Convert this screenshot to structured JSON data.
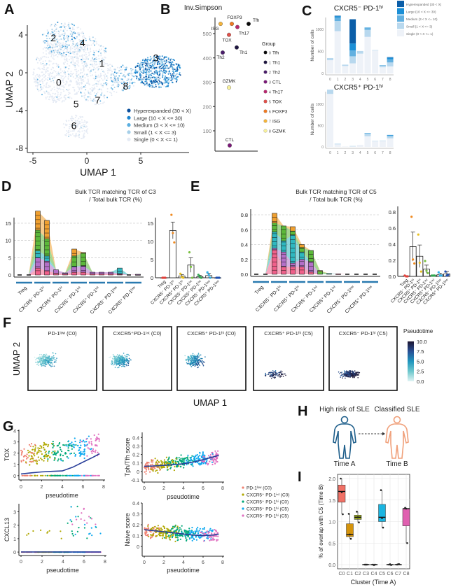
{
  "panels": {
    "A": "A",
    "B": "B",
    "C": "C",
    "D": "D",
    "E": "E",
    "F": "F",
    "G": "G",
    "H": "H",
    "I": "I"
  },
  "chart_data": [
    {
      "id": "A",
      "type": "scatter",
      "xlabel": "UMAP 1",
      "ylabel": "UMAP 2",
      "xticks": [
        -5,
        0,
        5
      ],
      "yticks": [
        4,
        0,
        -4,
        -8
      ],
      "xlim": [
        -5.5,
        9.5
      ],
      "ylim": [
        -8,
        6.5
      ],
      "cluster_labels": [
        {
          "label": "0",
          "x": -2.6,
          "y": -1
        },
        {
          "label": "1",
          "x": 1.4,
          "y": 1
        },
        {
          "label": "2",
          "x": -3.1,
          "y": 3.7
        },
        {
          "label": "3",
          "x": 6.4,
          "y": 1.6
        },
        {
          "label": "4",
          "x": -0.4,
          "y": 3.2
        },
        {
          "label": "5",
          "x": -1,
          "y": -3.3
        },
        {
          "label": "6",
          "x": -1.2,
          "y": -5.6
        },
        {
          "label": "7",
          "x": 1,
          "y": -2.9
        },
        {
          "label": "8",
          "x": 3.6,
          "y": -1.4
        }
      ],
      "legend": [
        {
          "label": "Hyperexpanded (30 < X)",
          "color": "#0b4f9c"
        },
        {
          "label": "Large (10 < X <= 30)",
          "color": "#1f86cf"
        },
        {
          "label": "Medium (3 < X <= 10)",
          "color": "#5aaee0"
        },
        {
          "label": "Small (1 < X <= 3)",
          "color": "#a6cfe8"
        },
        {
          "label": "Single (0 < X <= 1)",
          "color": "#e4eaf4"
        }
      ]
    },
    {
      "id": "B",
      "type": "scatter",
      "title": "Inv.Simpson",
      "yticks": [
        100,
        200,
        300,
        400,
        500
      ],
      "ylim": [
        20,
        560
      ],
      "legend_title": "Group",
      "groups": [
        {
          "idx": "0",
          "name": "Tfh",
          "value": 540,
          "color": "#0a0a0a"
        },
        {
          "idx": "1",
          "name": "Th1",
          "value": 443,
          "color": "#1e1640"
        },
        {
          "idx": "2",
          "name": "Th2",
          "value": 422,
          "color": "#4a1d6a"
        },
        {
          "idx": "3",
          "name": "CTL",
          "value": 40,
          "color": "#7b1a78"
        },
        {
          "idx": "4",
          "name": "Th17",
          "value": 527,
          "color": "#b8286e"
        },
        {
          "idx": "5",
          "name": "TOX",
          "value": 495,
          "color": "#e0504a"
        },
        {
          "idx": "6",
          "name": "FOXP3",
          "value": 540,
          "color": "#f07a22"
        },
        {
          "idx": "7",
          "name": "ISG",
          "value": 540,
          "color": "#f5b43a"
        },
        {
          "idx": "8",
          "name": "GZMK",
          "value": 278,
          "color": "#f7f09a"
        }
      ]
    },
    {
      "id": "C",
      "type": "bar",
      "stacked": true,
      "ylabel": "Number of cells",
      "categories": [
        "0",
        "1",
        "2",
        "3",
        "4",
        "5",
        "6",
        "7",
        "8"
      ],
      "layers": [
        "Single (0 < X <= 1)",
        "Small (1 < X <= 3)",
        "Medium (3 < X <= 10)",
        "Large (10 < X <= 30)",
        "Hyperexpanded (30 < X)"
      ],
      "legend": [
        {
          "label": "Hyperexpanded (30 < X)",
          "color": "#0b5ea8"
        },
        {
          "label": "Large (10 < X <= 30)",
          "color": "#1b8fd6"
        },
        {
          "label": "Medium (3 < X <= 10)",
          "color": "#62b0e0"
        },
        {
          "label": "Small (1 < X <= 3)",
          "color": "#b8d8ee"
        },
        {
          "label": "Single (0 < X <= 1)",
          "color": "#eef2f8"
        }
      ],
      "subplots": [
        {
          "title": "CXCR5⁻ PD-1ʰⁱ",
          "yticks": [
            0,
            500,
            1000
          ],
          "ylim": [
            0,
            1350
          ],
          "values": [
            [
              300,
              50,
              0,
              0,
              0
            ],
            [
              960,
              230,
              80,
              30,
              10
            ],
            [
              170,
              30,
              0,
              0,
              0
            ],
            [
              230,
              160,
              130,
              160,
              550
            ],
            [
              450,
              60,
              0,
              0,
              0
            ],
            [
              830,
              160,
              40,
              10,
              0
            ],
            [
              520,
              10,
              0,
              0,
              0
            ],
            [
              140,
              40,
              10,
              0,
              0
            ],
            [
              160,
              90,
              70,
              40,
              10
            ]
          ]
        },
        {
          "title": "CXCR5⁺ PD-1ʰⁱ",
          "yticks": [
            0,
            500,
            1000
          ],
          "ylim": [
            0,
            1350
          ],
          "values": [
            [
              1240,
              100,
              0,
              0,
              0
            ],
            [
              60,
              15,
              0,
              0,
              0
            ],
            [
              10,
              0,
              0,
              0,
              0
            ],
            [
              12,
              10,
              0,
              0,
              0
            ],
            [
              50,
              0,
              0,
              0,
              0
            ],
            [
              250,
              60,
              15,
              0,
              0
            ],
            [
              130,
              10,
              0,
              0,
              0
            ],
            [
              140,
              10,
              0,
              0,
              0
            ],
            [
              200,
              50,
              20,
              10,
              0
            ]
          ]
        }
      ]
    },
    {
      "id": "D",
      "type": "area",
      "title": [
        "Bulk TCR matching TCR of C3",
        "/ Total bulk TCR (%)"
      ],
      "categories": [
        "Treg",
        "CXCR5⁻ PD-1ʰⁱ",
        "CXCR5⁺ PD-1ʰⁱ",
        "CXCR5⁻ PD-1ⁱⁿᵗ",
        "CXCR5⁺ PD-1ⁱⁿᵗ",
        "CXCR5⁻ PD-1ˡᵒʷ",
        "CXCR5⁺ PD-1ˡᵒʷ"
      ],
      "yticks": [
        0,
        5,
        10,
        15
      ],
      "ylim": [
        0,
        20
      ],
      "layer_colors": [
        "#f0608a",
        "#b36fc8",
        "#2fb8c0",
        "#5cb83a",
        "#f0a030"
      ],
      "columns": [
        [
          0,
          0,
          0,
          0,
          0
        ],
        [
          0,
          0,
          0,
          0,
          0
        ],
        [
          2,
          3,
          2,
          6,
          5.5
        ],
        [
          1.2,
          2.8,
          1.5,
          5,
          5.3
        ],
        [
          0.5,
          1,
          0,
          0,
          0
        ],
        [
          0.3,
          0.3,
          0,
          0,
          0
        ],
        [
          0.8,
          1.5,
          0.2,
          3,
          2
        ],
        [
          0.8,
          1.7,
          0.2,
          3.6,
          0.2
        ],
        [
          0.3,
          0.5,
          0,
          0,
          0
        ],
        [
          0.3,
          0.5,
          0,
          0,
          0
        ],
        [
          0.3,
          0.5,
          0,
          0,
          0
        ],
        [
          0.2,
          0.2,
          1.6,
          0,
          0
        ],
        [
          0,
          0,
          0,
          0,
          0
        ],
        [
          0.1,
          0.1,
          0,
          0,
          0
        ]
      ],
      "bar_summary": {
        "categories": [
          "Treg",
          "CXCR5⁻ PD-1ʰⁱ",
          "CXCR5⁺ PD-1ʰⁱ",
          "CXCR5⁻ PD-1ⁱⁿᵗ",
          "CXCR5⁺ PD-1ⁱⁿᵗ",
          "CXCR5⁻ PD-1ˡᵒʷ",
          "CXCR5⁺ PD-1ˡᵒʷ"
        ],
        "yticks": [
          0,
          5,
          10,
          15
        ],
        "ylim": [
          0,
          18
        ],
        "means": [
          0,
          13,
          0.5,
          3.5,
          0.3,
          0.6,
          0
        ],
        "sem": [
          0,
          2.3,
          0.4,
          2,
          0.4,
          0.6,
          0
        ],
        "points": [
          [
            0,
            0,
            0
          ],
          [
            17.3,
            12.3,
            9.7
          ],
          [
            1.1,
            0.2,
            0
          ],
          [
            7,
            3,
            0
          ],
          [
            0.8,
            0.3,
            0
          ],
          [
            1.5,
            0.8,
            0
          ],
          [
            0,
            0,
            0
          ]
        ],
        "point_colors": [
          "#e0403a",
          "#f08a20",
          "#e8c020",
          "#7ac040",
          "#30a850",
          "#30b0e8",
          "#2050b0"
        ]
      }
    },
    {
      "id": "E",
      "type": "area",
      "title": [
        "Bulk TCR matching TCR of C5",
        "/ Total bulk TCR (%)"
      ],
      "categories": [
        "Treg",
        "CXCR5⁻ PD-1ʰⁱ",
        "CXCR5⁺ PD-1ʰⁱ",
        "CXCR5⁻ PD-1ⁱⁿᵗ",
        "CXCR5⁺ PD-1ⁱⁿᵗ",
        "CXCR5⁻ PD-1ˡᵒʷ",
        "CXCR5⁺ PD-1ˡᵒʷ"
      ],
      "yticks": [
        0.0,
        0.2,
        0.4,
        0.6,
        0.8
      ],
      "ylim": [
        0,
        0.85
      ],
      "layer_colors": [
        "#f0608a",
        "#b36fc8",
        "#2fb8c0",
        "#5cb83a",
        "#f0a030"
      ],
      "columns": [
        [
          0,
          0,
          0,
          0,
          0
        ],
        [
          0,
          0,
          0,
          0,
          0
        ],
        [
          0.33,
          0.02,
          0.22,
          0.12,
          0.13
        ],
        [
          0.1,
          0.2,
          0.15,
          0.2,
          0
        ],
        [
          0.1,
          0.05,
          0.38,
          0.05,
          0.06
        ],
        [
          0.1,
          0.1,
          0.1,
          0.06,
          0.04
        ],
        [
          0.03,
          0.14,
          0,
          0.15,
          0
        ],
        [
          0,
          0,
          0,
          0.04,
          0.01
        ],
        [
          0,
          0,
          0.01,
          0,
          0
        ],
        [
          0.005,
          0,
          0,
          0,
          0
        ],
        [
          0,
          0,
          0,
          0,
          0
        ],
        [
          0,
          0,
          0,
          0,
          0
        ],
        [
          0,
          0,
          0,
          0,
          0
        ],
        [
          0,
          0,
          0,
          0,
          0
        ]
      ],
      "bar_summary": {
        "categories": [
          "Treg",
          "CXCR5⁻ PD-1ʰⁱ",
          "CXCR5⁺ PD-1ʰⁱ",
          "CXCR5⁻ PD-1ⁱⁿᵗ",
          "CXCR5⁺ PD-1ⁱⁿᵗ",
          "CXCR5⁻ PD-1ˡᵒʷ",
          "CXCR5⁺ PD-1ˡᵒʷ"
        ],
        "yticks": [
          0.0,
          0.2,
          0.4,
          0.6,
          0.8
        ],
        "ylim": [
          0,
          0.82
        ],
        "means": [
          0.005,
          0.37,
          0.25,
          0.09,
          0.01,
          0.02,
          0.03
        ],
        "sem": [
          0.005,
          0.18,
          0.14,
          0.05,
          0.003,
          0.02,
          0.03
        ],
        "points": [
          [
            0.01,
            0,
            0
          ],
          [
            0.74,
            0.21,
            0.16
          ],
          [
            0.52,
            0.17,
            0.06
          ],
          [
            0.19,
            0.07,
            0.04
          ],
          [
            0.01,
            0.01,
            0.01
          ],
          [
            0.05,
            0.01,
            0.01
          ],
          [
            0.06,
            0.01,
            0.02
          ]
        ],
        "point_colors": [
          "#e0403a",
          "#f08a20",
          "#e8c020",
          "#7ac040",
          "#30a850",
          "#30b0e8",
          "#2050b0"
        ]
      }
    },
    {
      "id": "F",
      "type": "scatter",
      "xlabel": "UMAP 1",
      "ylabel": "UMAP 2",
      "subplots": [
        "PD-1ˡᵒʷ (C0)",
        "CXCR5⁺PD-1ⁱⁿᵗ (C0)",
        "CXCR5⁺ PD-1ʰⁱ (C0)",
        "CXCR5⁺ PD-1ʰⁱ (C5)",
        "CXCR5⁻ PD-1ʰⁱ (C5)"
      ],
      "mean_pseudotime": [
        3,
        4,
        5.5,
        8.5,
        9
      ],
      "colorbar": {
        "title": "Pseudotime",
        "ticks": [
          "10.0",
          "7.5",
          "5.0",
          "2.5",
          "0.0"
        ],
        "range": [
          0,
          10
        ]
      }
    },
    {
      "id": "G",
      "type": "scatter",
      "xlabel": "pseudotime",
      "xticks": [
        0,
        2,
        4,
        6,
        8
      ],
      "xlim": [
        -0.3,
        8
      ],
      "legend": [
        {
          "label": "PD-1ˡᵒʷ (C0)",
          "color": "#f08070"
        },
        {
          "label": "CXCR5⁺ PD-1ⁱⁿᵗ (C0)",
          "color": "#b0a800"
        },
        {
          "label": "CXCR5⁺ PD-1ʰⁱ (C0)",
          "color": "#00a878"
        },
        {
          "label": "CXCR5⁺ PD-1ʰⁱ (C5)",
          "color": "#10aaf0"
        },
        {
          "label": "CXCR5⁻ PD-1ʰⁱ (C5)",
          "color": "#e070c0"
        }
      ],
      "trend_x": [
        0,
        1,
        2,
        3,
        4,
        5,
        6,
        7,
        7.6
      ],
      "subplots": [
        {
          "ylabel": "TOX",
          "yticks": [
            0,
            1,
            2,
            3,
            4
          ],
          "ylim": [
            -0.2,
            4.1
          ],
          "trend_y": [
            0.15,
            0.25,
            0.33,
            0.38,
            0.42,
            0.75,
            1.2,
            1.65,
            1.95
          ]
        },
        {
          "ylabel": "Tph/Tfh score",
          "yticks": [
            -0.1,
            0.0,
            0.1,
            0.2,
            0.3,
            0.4
          ],
          "ylim": [
            -0.1,
            0.46
          ],
          "trend_y": [
            0.06,
            0.065,
            0.072,
            0.08,
            0.09,
            0.11,
            0.14,
            0.17,
            0.19
          ]
        },
        {
          "ylabel": "CXCL13",
          "yticks": [
            0,
            1,
            2,
            3
          ],
          "ylim": [
            -0.1,
            3.6
          ],
          "trend_y": [
            0.01,
            0.01,
            0.01,
            0.01,
            0.01,
            0.01,
            0.01,
            0.01,
            0.01
          ]
        },
        {
          "ylabel": "Naive score",
          "yticks": [
            0.0,
            0.1,
            0.2,
            0.3,
            0.4
          ],
          "ylim": [
            -0.07,
            0.4
          ],
          "trend_y": [
            0.155,
            0.145,
            0.135,
            0.125,
            0.115,
            0.105,
            0.1,
            0.105,
            0.115
          ]
        }
      ]
    },
    {
      "id": "I",
      "type": "box",
      "xlabel": "Cluster (Time A)",
      "ylabel": "% of overlap with C5 (Time B)",
      "categories": [
        "C0",
        "C1",
        "C2",
        "C3",
        "C4",
        "C5",
        "C6",
        "C7",
        "C8"
      ],
      "yticks": [
        0.0,
        0.5,
        1.0,
        1.5,
        2.0
      ],
      "ylim": [
        -0.05,
        2.1
      ],
      "boxes": [
        {
          "min": 1.17,
          "q1": 1.45,
          "median": 1.7,
          "q3": 1.85,
          "max": 2.0,
          "points": [
            2.0,
            1.68,
            1.17
          ],
          "color": "#f07065"
        },
        {
          "min": 0.6,
          "q1": 0.65,
          "median": 0.7,
          "q3": 0.95,
          "max": 1.18,
          "points": [
            1.18,
            0.7,
            0.6
          ],
          "color": "#d4930c"
        },
        {
          "min": 0.98,
          "q1": 1.05,
          "median": 1.1,
          "q3": 1.15,
          "max": 1.23,
          "points": [
            1.23,
            1.1,
            0.98
          ],
          "color": "#9aaa20"
        },
        {
          "min": 0,
          "q1": 0,
          "median": 0,
          "q3": 0,
          "max": 0,
          "points": [
            0,
            0,
            0
          ],
          "color": "#20b090"
        },
        {
          "min": 0,
          "q1": 0,
          "median": 0,
          "q3": 0,
          "max": 0,
          "points": [
            0,
            -0.01,
            0
          ],
          "color": "#20b0a0"
        },
        {
          "min": 0.86,
          "q1": 1.0,
          "median": 1.1,
          "q3": 1.4,
          "max": 1.73,
          "points": [
            1.73,
            1.08,
            0.86
          ],
          "color": "#1ab4e0"
        },
        {
          "min": 0,
          "q1": 0,
          "median": 0,
          "q3": 0,
          "max": 0,
          "points": [
            0,
            0.01,
            -0.01
          ],
          "color": "#6a8ae0"
        },
        {
          "min": 0,
          "q1": 0,
          "median": 0,
          "q3": 0,
          "max": 0,
          "points": [
            0,
            0.01,
            0.01
          ],
          "color": "#a080e0"
        },
        {
          "min": 0.5,
          "q1": 0.9,
          "median": 1.3,
          "q3": 1.3,
          "max": 1.32,
          "points": [
            1.32,
            1.3,
            0.5
          ],
          "color": "#e060b0"
        }
      ]
    }
  ],
  "H": {
    "left_title": "High risk of SLE",
    "right_title": "Classified SLE",
    "left_time": "Time A",
    "right_time": "Time B",
    "left_color": "#1f5f8b",
    "right_color": "#f0a07a"
  }
}
